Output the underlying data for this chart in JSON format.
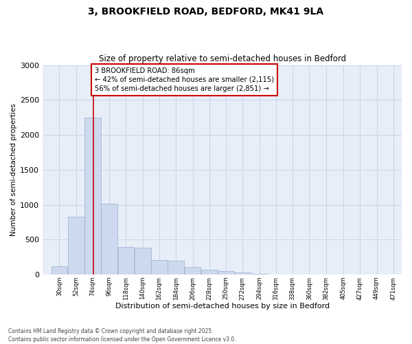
{
  "title_line1": "3, BROOKFIELD ROAD, BEDFORD, MK41 9LA",
  "title_line2": "Size of property relative to semi-detached houses in Bedford",
  "xlabel": "Distribution of semi-detached houses by size in Bedford",
  "ylabel": "Number of semi-detached properties",
  "bar_color": "#ccd9ee",
  "bar_edge_color": "#9ab0d0",
  "grid_color": "#c8d4e8",
  "background_color": "#e8eef8",
  "vline_color": "#cc0000",
  "annotation_text": "3 BROOKFIELD ROAD: 86sqm\n← 42% of semi-detached houses are smaller (2,115)\n56% of semi-detached houses are larger (2,851) →",
  "categories": [
    "30sqm",
    "52sqm",
    "74sqm",
    "96sqm",
    "118sqm",
    "140sqm",
    "162sqm",
    "184sqm",
    "206sqm",
    "228sqm",
    "250sqm",
    "272sqm",
    "294sqm",
    "316sqm",
    "338sqm",
    "360sqm",
    "382sqm",
    "405sqm",
    "427sqm",
    "449sqm",
    "471sqm"
  ],
  "bin_starts": [
    30,
    52,
    74,
    96,
    118,
    140,
    162,
    184,
    206,
    228,
    250,
    272,
    294,
    316,
    338,
    360,
    382,
    405,
    427,
    449,
    471
  ],
  "bin_width": 22,
  "values": [
    120,
    830,
    2250,
    1020,
    390,
    385,
    205,
    195,
    105,
    68,
    52,
    28,
    12,
    5,
    3,
    2,
    1,
    1,
    0,
    0,
    0
  ],
  "ylim": [
    0,
    3000
  ],
  "yticks": [
    0,
    500,
    1000,
    1500,
    2000,
    2500,
    3000
  ],
  "xlim_left": 19,
  "xlim_right": 493,
  "property_x": 86,
  "footnote": "Contains HM Land Registry data © Crown copyright and database right 2025.\nContains public sector information licensed under the Open Government Licence v3.0."
}
